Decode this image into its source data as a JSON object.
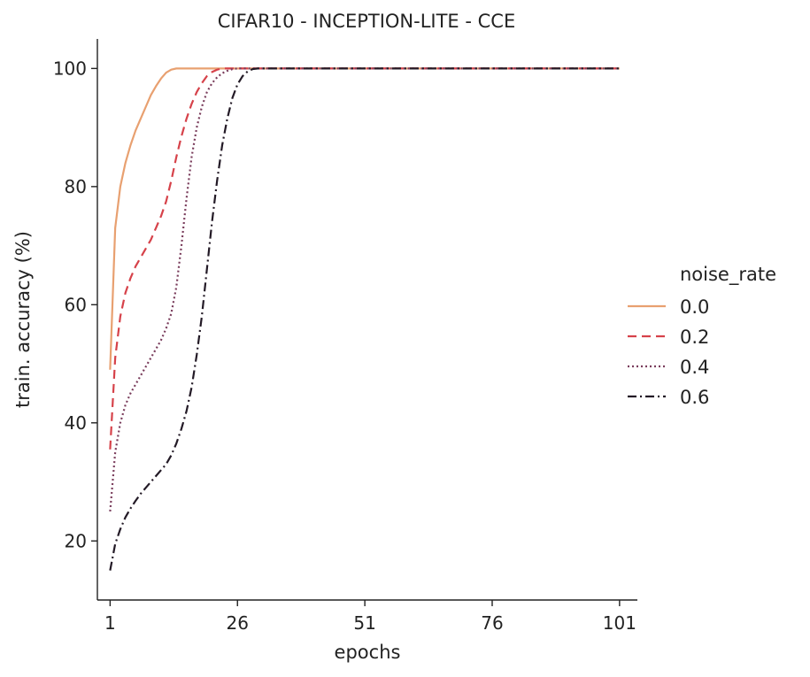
{
  "chart_data": {
    "type": "line",
    "title": "CIFAR10 - INCEPTION-LITE - CCE",
    "xlabel": "epochs",
    "ylabel": "train. accuracy (%)",
    "xlim": [
      -1.5,
      104.5
    ],
    "ylim": [
      10,
      105
    ],
    "xticks": [
      1,
      26,
      51,
      76,
      101
    ],
    "yticks": [
      20,
      40,
      60,
      80,
      100
    ],
    "grid": false,
    "legend": {
      "title": "noise_rate",
      "placement": "right"
    },
    "x": [
      1,
      2,
      3,
      4,
      5,
      6,
      7,
      8,
      9,
      10,
      11,
      12,
      13,
      14,
      15,
      16,
      17,
      18,
      19,
      20,
      21,
      22,
      23,
      24,
      25,
      26,
      27,
      28,
      29,
      30,
      31,
      32,
      33,
      34,
      35,
      36,
      37,
      38,
      39,
      40,
      45,
      50,
      60,
      70,
      80,
      90,
      101
    ],
    "series": [
      {
        "name": "0.0",
        "color": "#e8a070",
        "dash": "solid",
        "values": [
          49,
          73,
          80,
          84,
          87,
          89.5,
          91.5,
          93.5,
          95.5,
          97,
          98.3,
          99.3,
          99.8,
          100,
          100,
          100,
          100,
          100,
          100,
          100,
          100,
          100,
          100,
          100,
          100,
          100,
          100,
          100,
          100,
          100,
          100,
          100,
          100,
          100,
          100,
          100,
          100,
          100,
          100,
          100,
          100,
          100,
          100,
          100,
          100,
          100,
          100
        ]
      },
      {
        "name": "0.2",
        "color": "#d6424a",
        "dash": "dashed",
        "values": [
          35.5,
          51,
          58,
          62,
          64.5,
          66.5,
          68,
          69.5,
          71,
          73,
          75,
          77.5,
          81,
          85,
          88.5,
          91.5,
          94,
          96,
          97.5,
          98.7,
          99.4,
          99.8,
          100,
          100,
          100,
          100,
          100,
          100,
          100,
          100,
          100,
          100,
          100,
          100,
          100,
          100,
          100,
          100,
          100,
          100,
          100,
          100,
          100,
          100,
          100,
          100,
          100
        ]
      },
      {
        "name": "0.4",
        "color": "#7a3d5c",
        "dash": "dotted",
        "values": [
          25,
          35,
          40,
          43,
          45,
          46.5,
          48,
          49.5,
          51,
          52.5,
          54,
          56,
          58.5,
          63,
          70,
          78,
          85,
          90,
          93.5,
          96,
          97.5,
          98.5,
          99.2,
          99.6,
          99.9,
          100,
          100,
          100,
          100,
          100,
          100,
          100,
          100,
          100,
          100,
          100,
          100,
          100,
          100,
          100,
          100,
          100,
          100,
          100,
          100,
          100,
          100
        ]
      },
      {
        "name": "0.6",
        "color": "#231a26",
        "dash": "dashdot",
        "values": [
          15,
          19.5,
          22,
          24,
          25.5,
          26.8,
          28,
          29,
          30,
          31,
          32,
          33,
          34.5,
          36.5,
          39,
          42,
          46,
          51.5,
          58,
          66,
          74,
          81,
          87,
          91.5,
          95,
          97.3,
          98.7,
          99.5,
          99.9,
          100,
          100,
          100,
          100,
          100,
          100,
          100,
          100,
          100,
          100,
          100,
          100,
          100,
          100,
          100,
          100,
          100,
          100
        ]
      }
    ]
  }
}
